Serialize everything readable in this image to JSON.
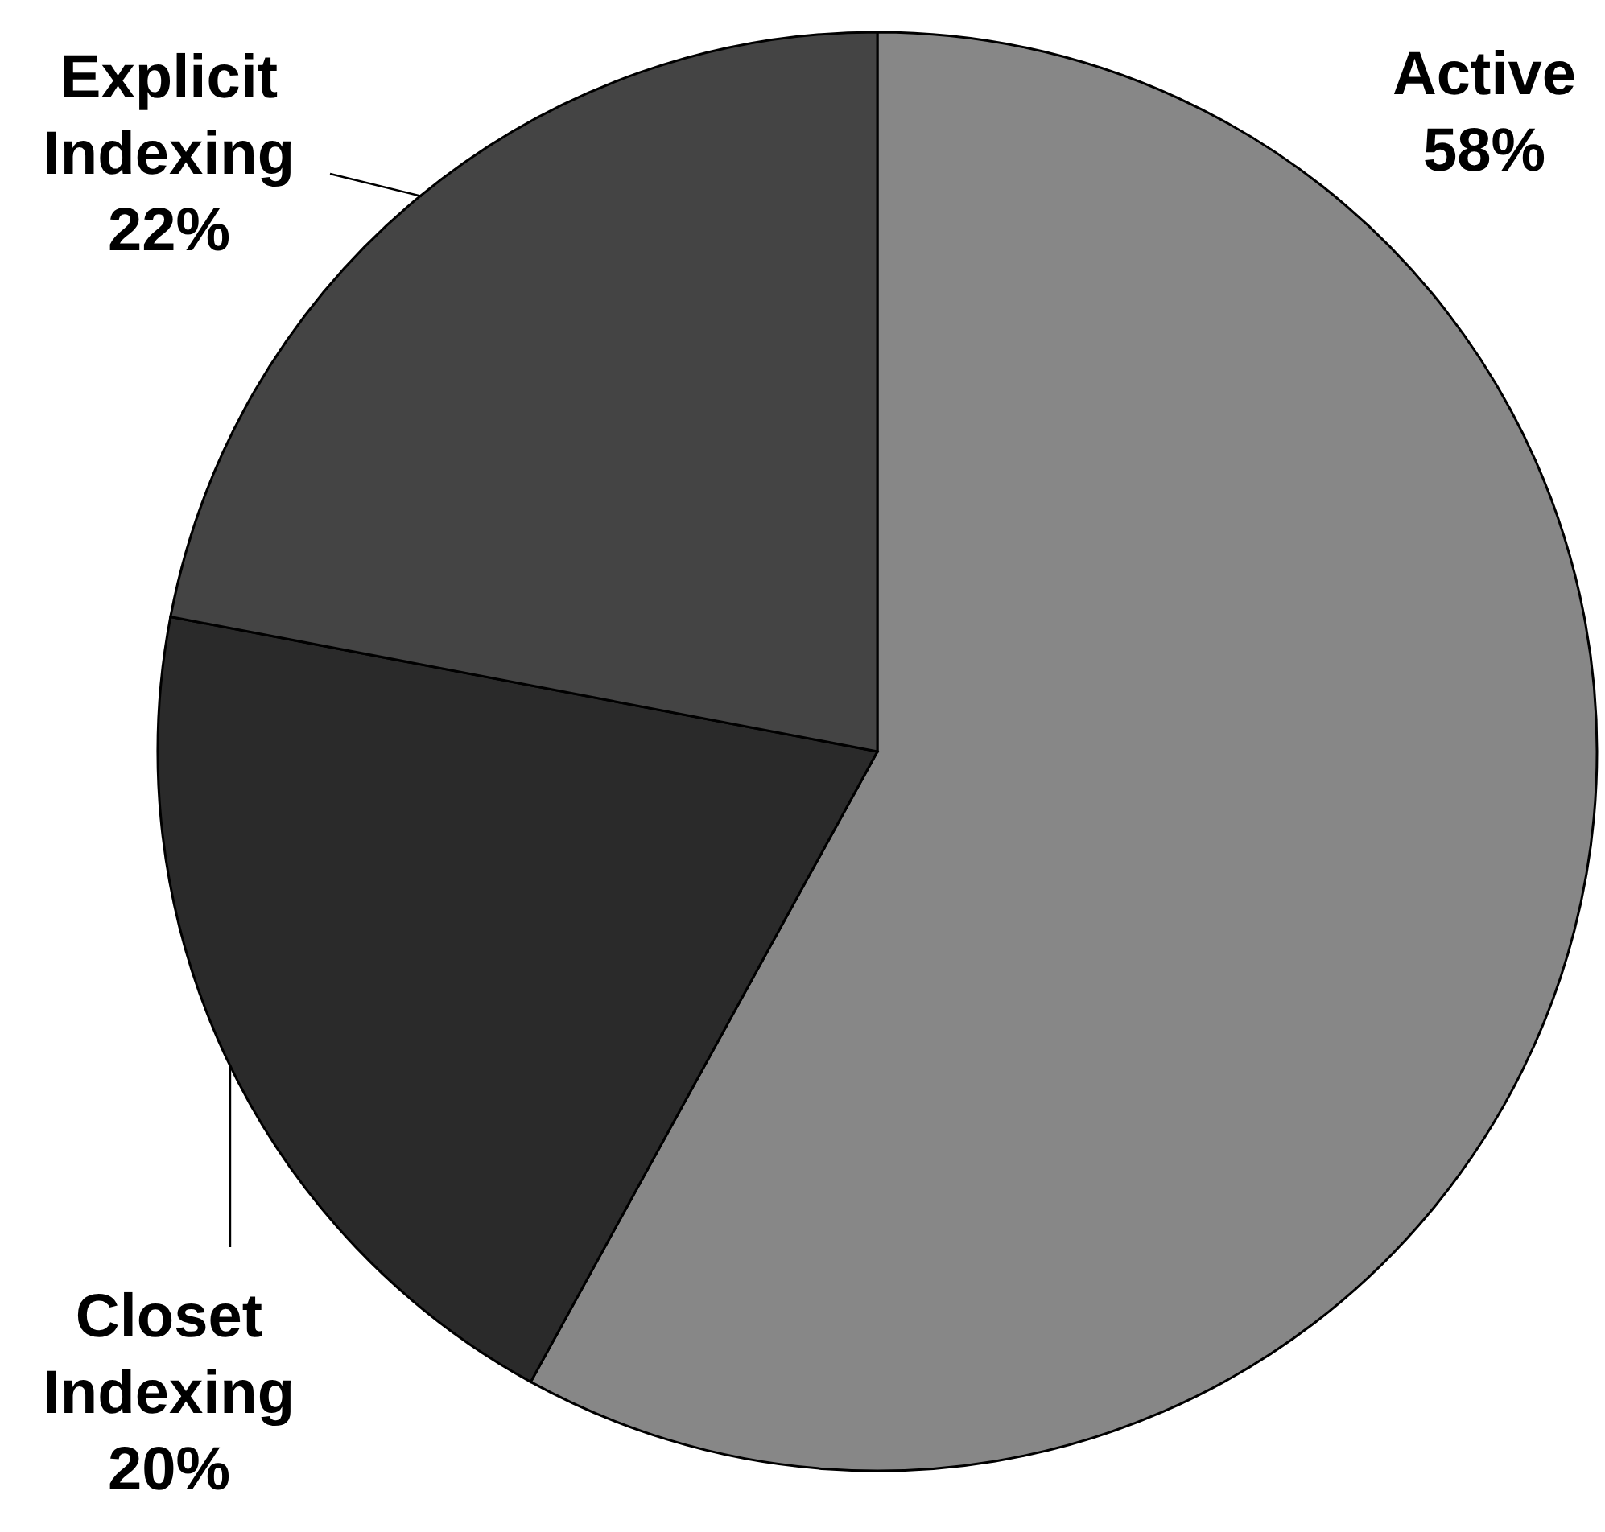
{
  "chart_data": {
    "type": "pie",
    "categories": [
      "Active",
      "Closet Indexing",
      "Explicit Indexing"
    ],
    "values": [
      58,
      20,
      22
    ],
    "colors": [
      "#878787",
      "#2a2a2a",
      "#444444"
    ],
    "value_labels": [
      "58%",
      "20%",
      "22%"
    ]
  }
}
